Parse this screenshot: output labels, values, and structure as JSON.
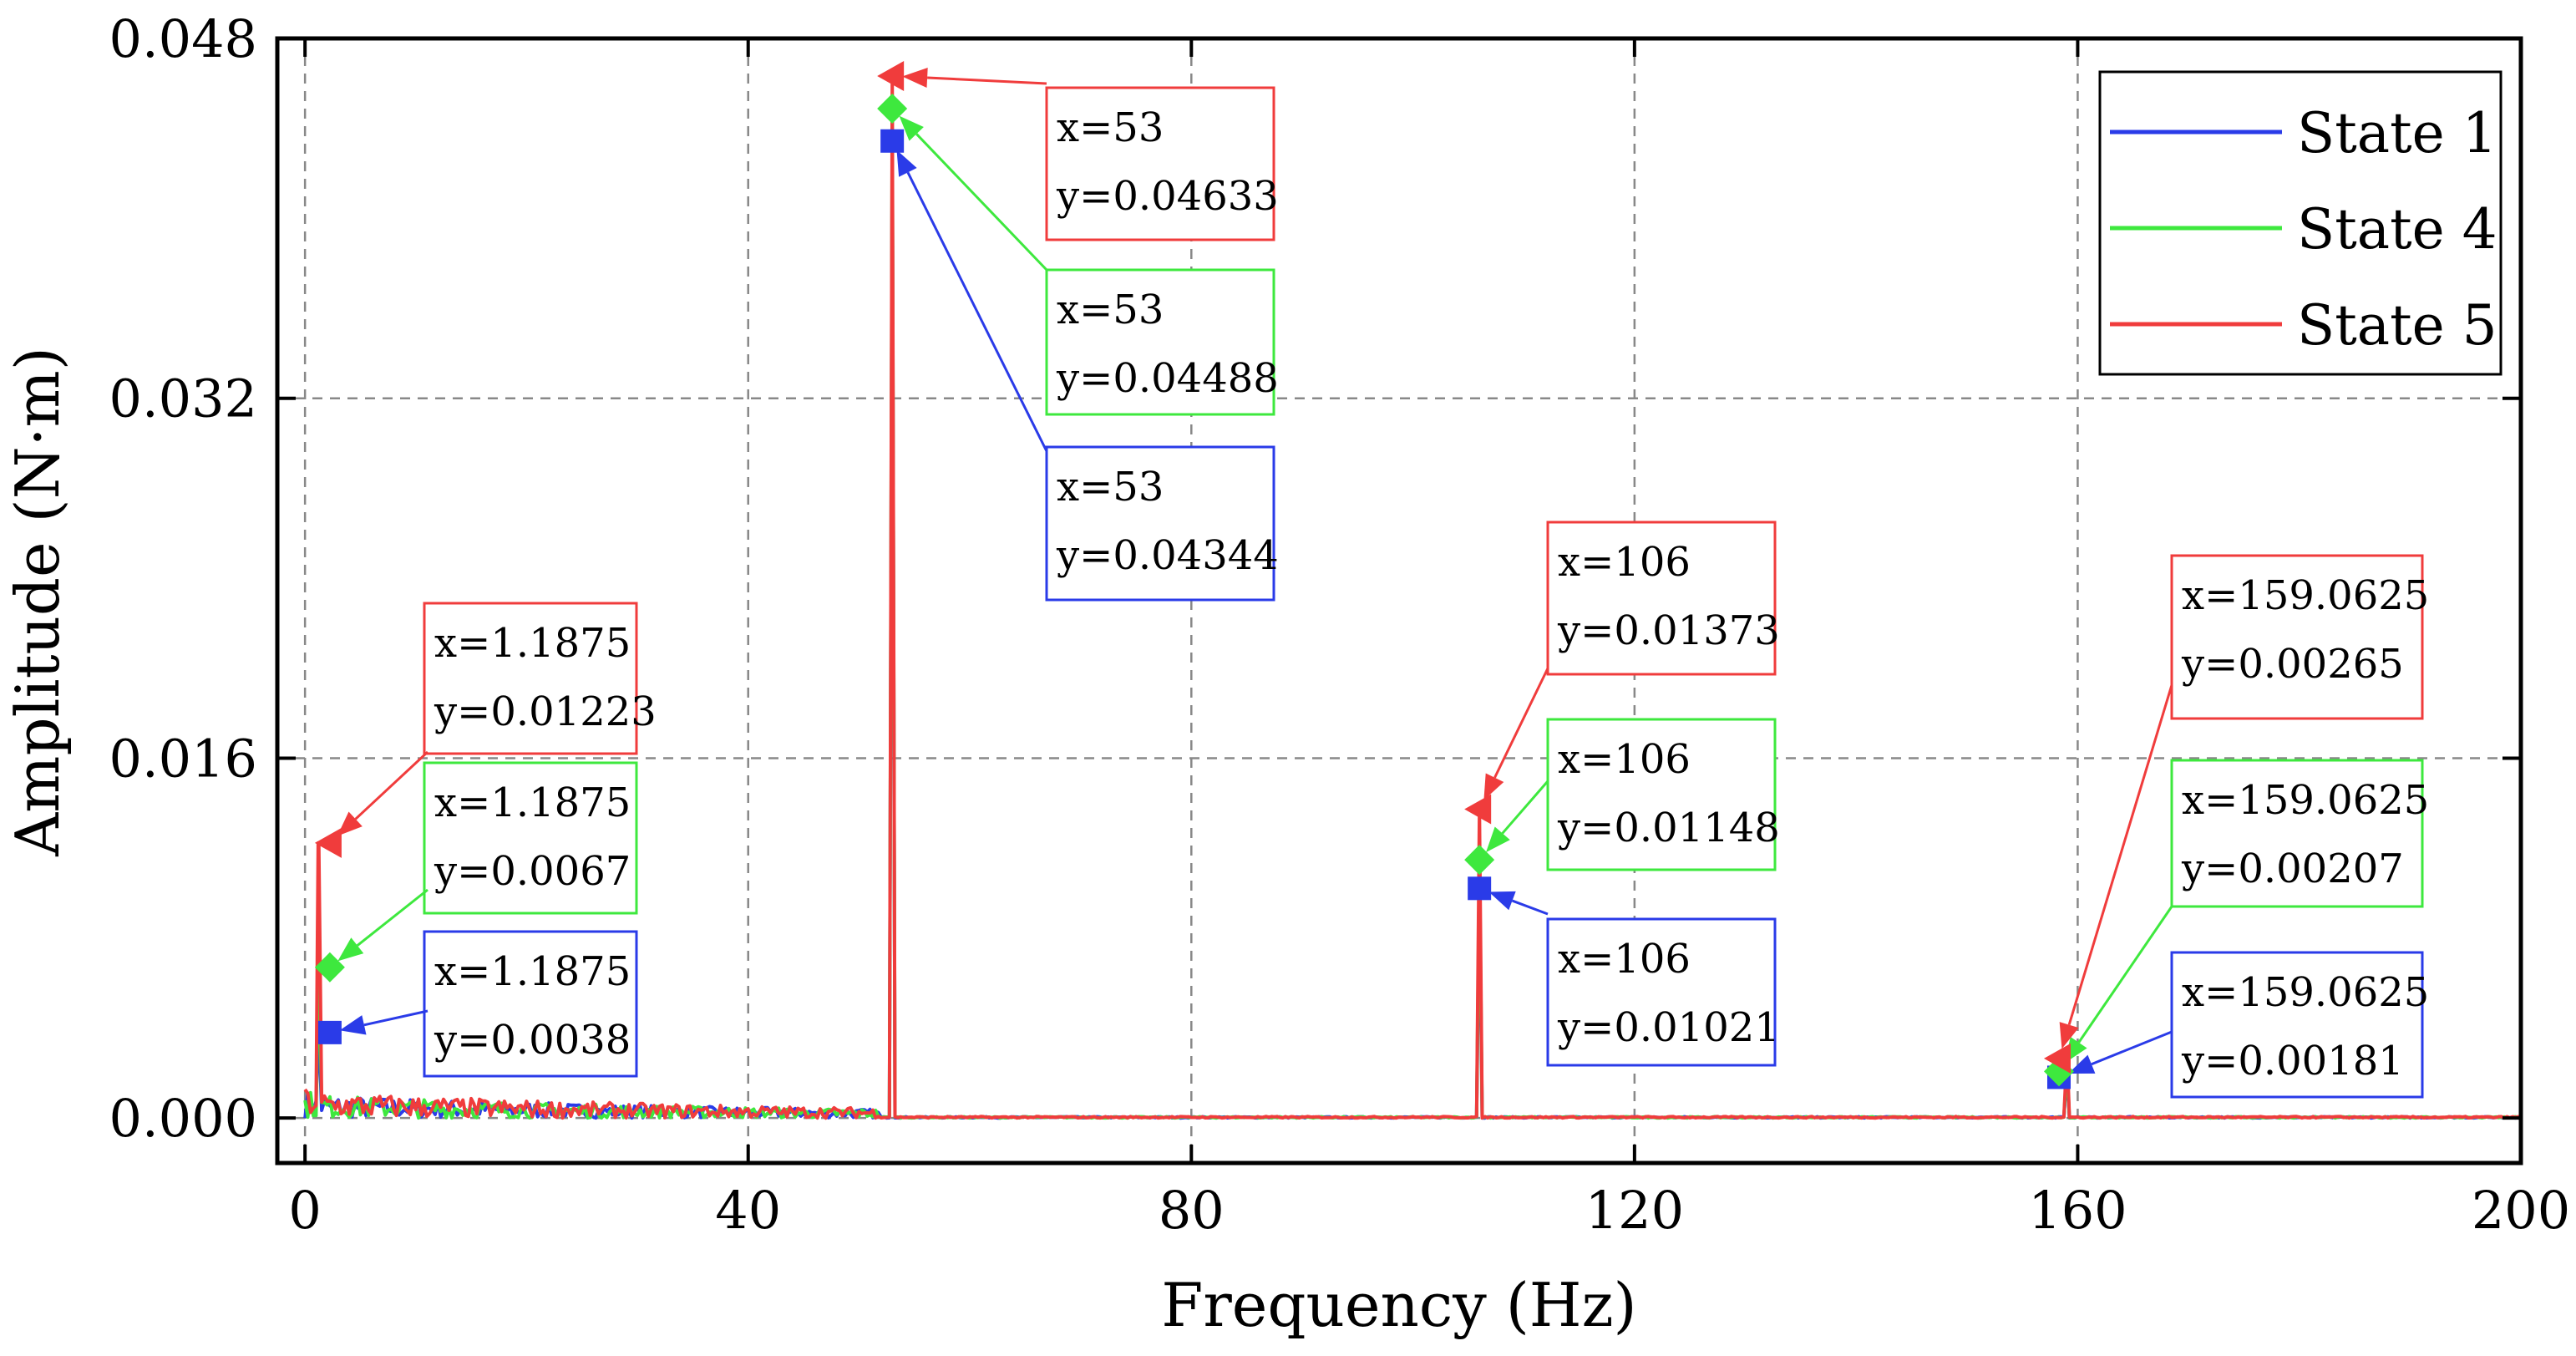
{
  "chart_data": {
    "type": "line",
    "xlabel": "Frequency (Hz)",
    "ylabel": "Amplitude (N·m)",
    "xlim": [
      -2.5,
      200
    ],
    "ylim": [
      -0.002,
      0.048
    ],
    "x_ticks": [
      0,
      40,
      80,
      120,
      160,
      200
    ],
    "x_tick_labels": [
      "0",
      "40",
      "80",
      "120",
      "160",
      "200"
    ],
    "y_ticks": [
      0.0,
      0.016,
      0.032,
      0.048
    ],
    "y_tick_labels": [
      "0.000",
      "0.016",
      "0.032",
      "0.048"
    ],
    "grid": true,
    "legend_position": "top-right",
    "series": [
      {
        "name": "State 1",
        "color": "#2a3be8",
        "marker": "square",
        "peaks": [
          {
            "x": 1.1875,
            "y": 0.0038,
            "label_x": "x=1.1875",
            "label_y": "y=0.0038"
          },
          {
            "x": 53,
            "y": 0.04344,
            "label_x": "x=53",
            "label_y": "y=0.04344"
          },
          {
            "x": 106,
            "y": 0.01021,
            "label_x": "x=106",
            "label_y": "y=0.01021"
          },
          {
            "x": 159.0625,
            "y": 0.00181,
            "label_x": "x=159.0625",
            "label_y": "y=0.00181"
          }
        ]
      },
      {
        "name": "State 4",
        "color": "#3ee83e",
        "marker": "diamond",
        "peaks": [
          {
            "x": 1.1875,
            "y": 0.0067,
            "label_x": "x=1.1875",
            "label_y": "y=0.0067"
          },
          {
            "x": 53,
            "y": 0.04488,
            "label_x": "x=53",
            "label_y": "y=0.04488"
          },
          {
            "x": 106,
            "y": 0.01148,
            "label_x": "x=106",
            "label_y": "y=0.01148"
          },
          {
            "x": 159.0625,
            "y": 0.00207,
            "label_x": "x=159.0625",
            "label_y": "y=0.00207"
          }
        ]
      },
      {
        "name": "State 5",
        "color": "#f03c3c",
        "marker": "triangle",
        "peaks": [
          {
            "x": 1.1875,
            "y": 0.01223,
            "label_x": "x=1.1875",
            "label_y": "y=0.01223"
          },
          {
            "x": 53,
            "y": 0.04633,
            "label_x": "x=53",
            "label_y": "y=0.04633"
          },
          {
            "x": 106,
            "y": 0.01373,
            "label_x": "x=106",
            "label_y": "y=0.01373"
          },
          {
            "x": 159.0625,
            "y": 0.00265,
            "label_x": "x=159.0625",
            "label_y": "y=0.00265"
          }
        ]
      }
    ]
  }
}
